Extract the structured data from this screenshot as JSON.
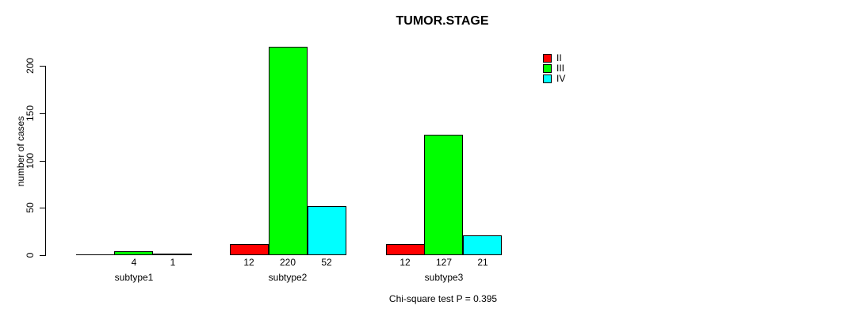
{
  "title": "TUMOR.STAGE",
  "ylabel": "number of cases",
  "footer": "Chi-square test P = 0.395",
  "legend": [
    {
      "label": "II",
      "color": "#ff0000"
    },
    {
      "label": "III",
      "color": "#00ff00"
    },
    {
      "label": "IV",
      "color": "#00ffff"
    }
  ],
  "chart_data": {
    "type": "bar",
    "title": "TUMOR.STAGE",
    "categories": [
      "subtype1",
      "subtype2",
      "subtype3"
    ],
    "series": [
      {
        "name": "II",
        "color": "#ff0000",
        "values": [
          0,
          12,
          12
        ]
      },
      {
        "name": "III",
        "color": "#00ff00",
        "values": [
          4,
          220,
          127
        ]
      },
      {
        "name": "IV",
        "color": "#00ffff",
        "values": [
          1,
          52,
          21
        ]
      }
    ],
    "bar_labels": [
      [
        "",
        "4",
        "1"
      ],
      [
        "12",
        "220",
        "52"
      ],
      [
        "12",
        "127",
        "21"
      ]
    ],
    "xlabel": "",
    "ylabel": "number of cases",
    "yticks": [
      0,
      50,
      100,
      150,
      200
    ],
    "ylim": [
      0,
      220
    ],
    "grid": false,
    "legend_position": "top-right",
    "annotation": "Chi-square test P = 0.395",
    "bar_border_color": "#000000"
  }
}
